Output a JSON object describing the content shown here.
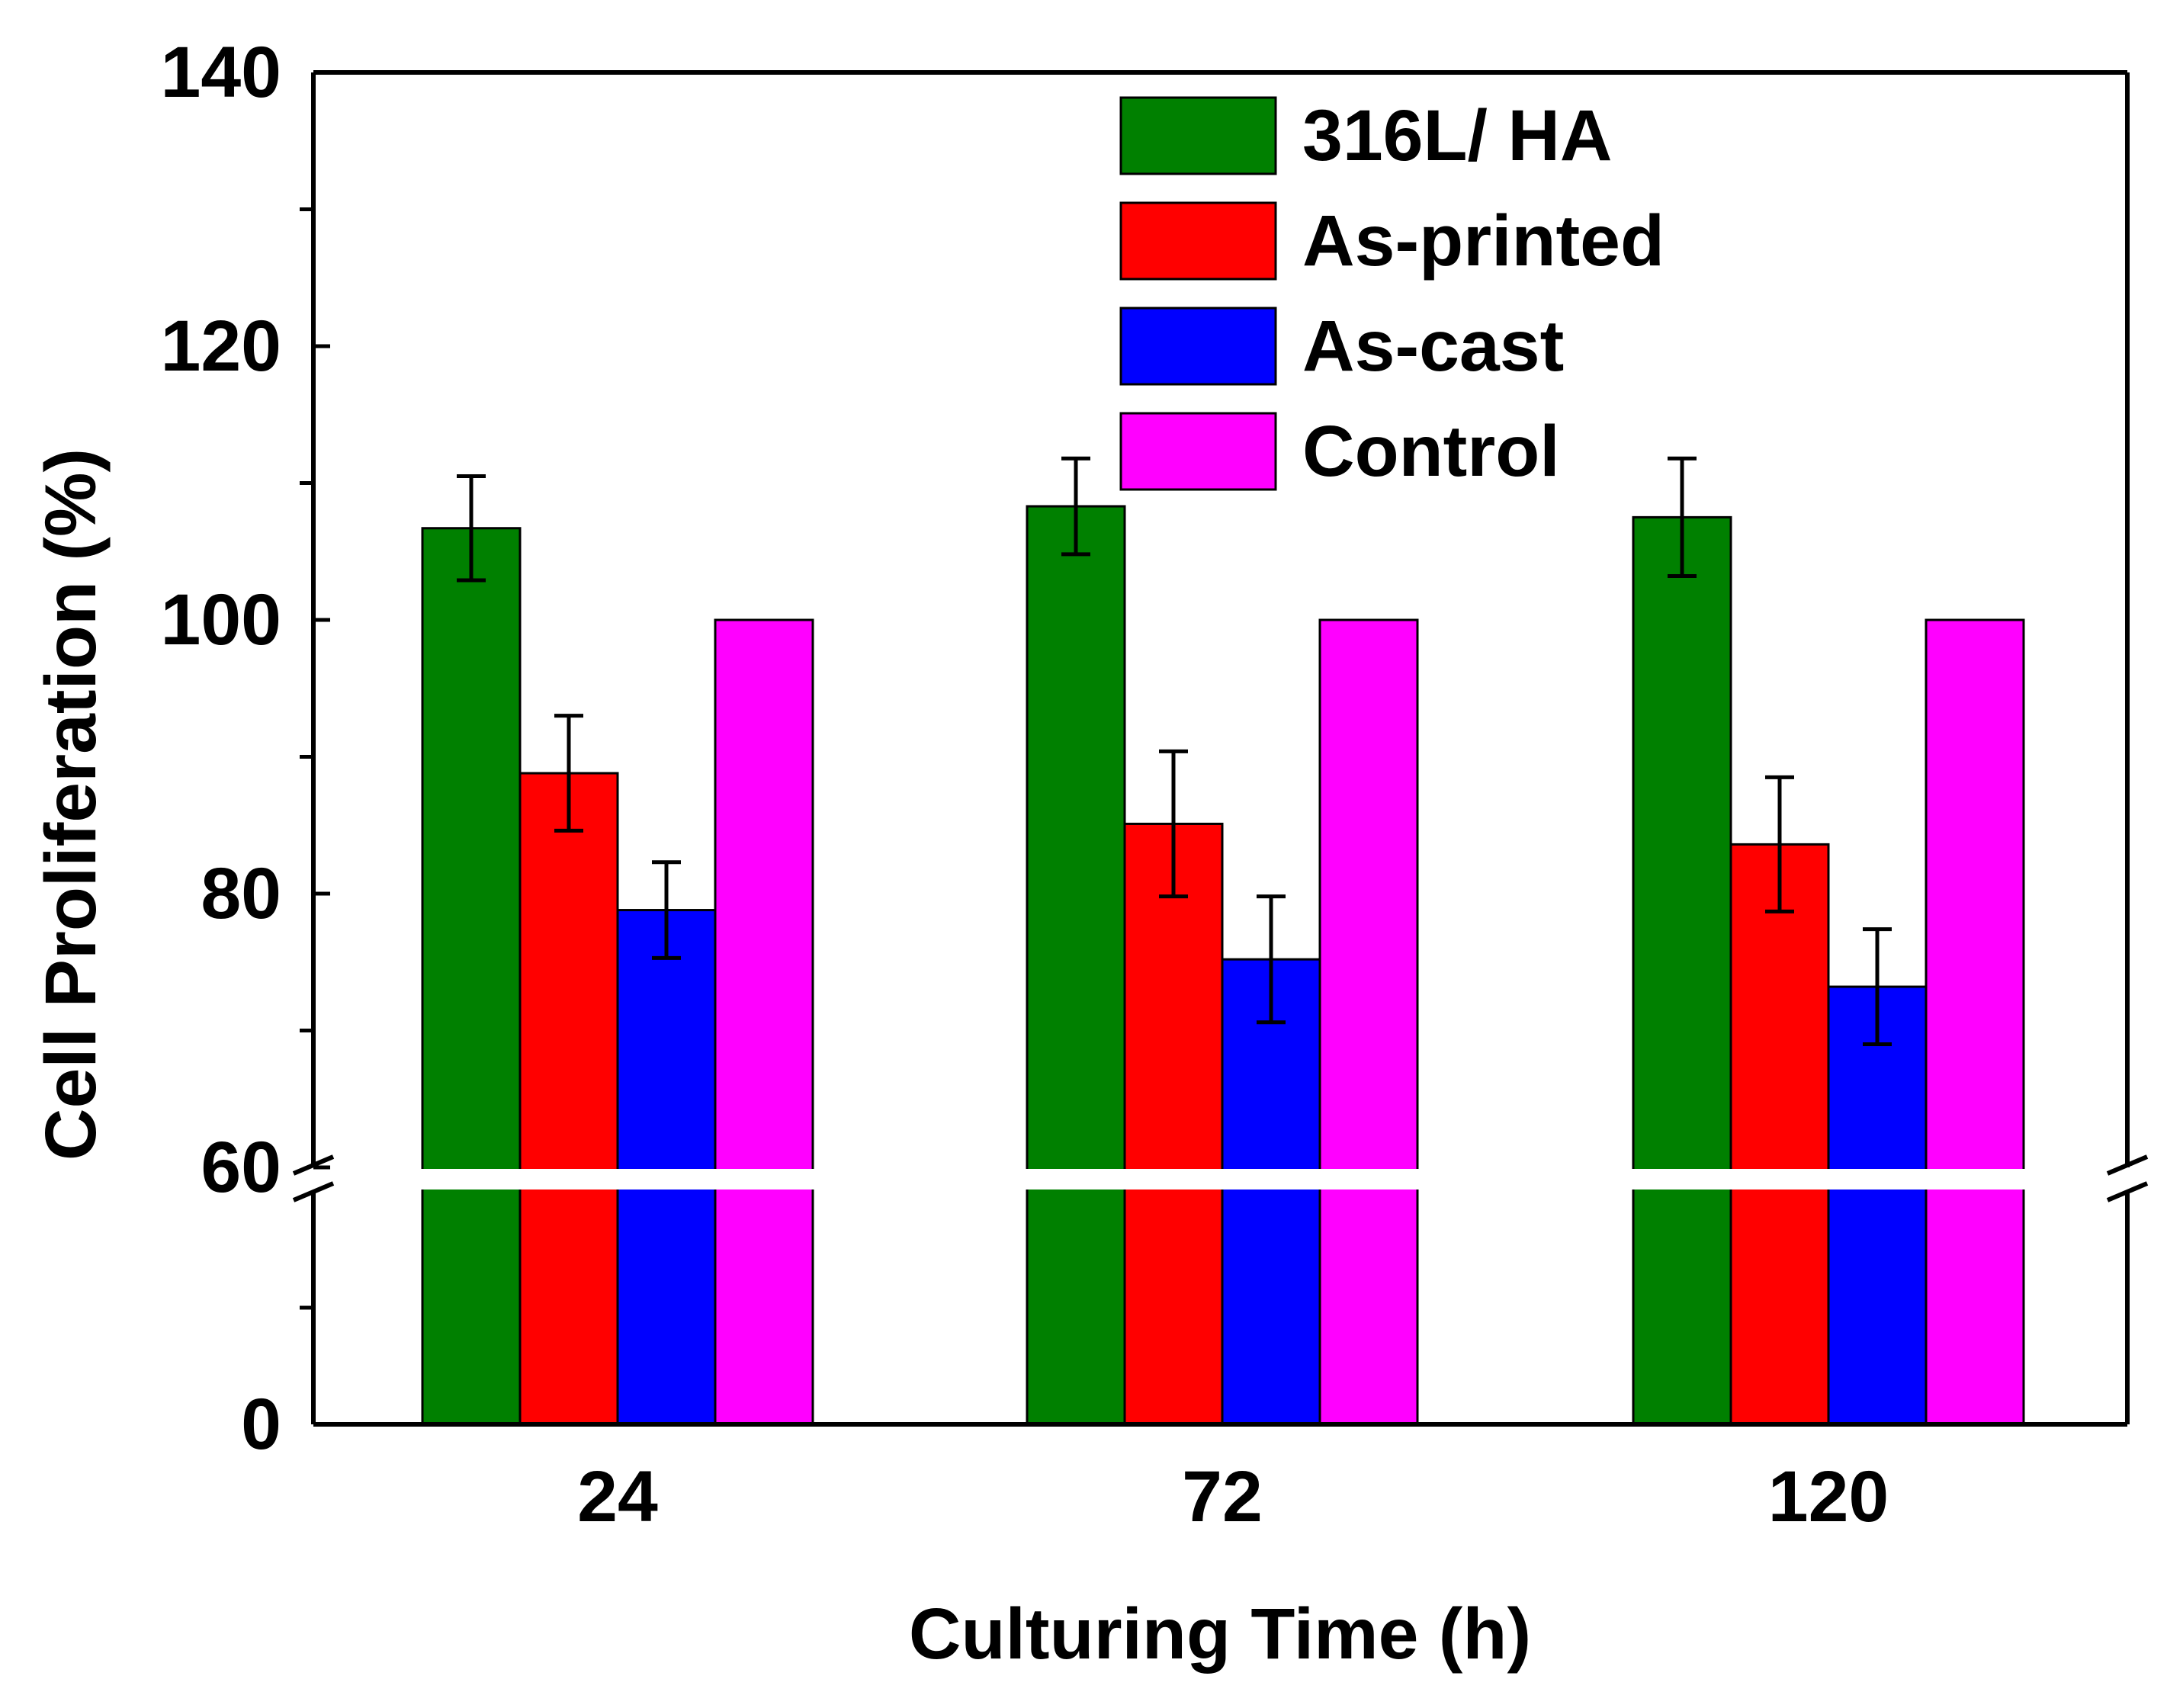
{
  "chart_data": {
    "type": "bar",
    "title": "",
    "xlabel": "Culturing Time (h)",
    "ylabel": "Cell Proliferation (%)",
    "categories": [
      "24",
      "72",
      "120"
    ],
    "ylim": [
      0,
      140
    ],
    "axis_break": [
      30,
      60
    ],
    "yticks": [
      "0",
      "60",
      "80",
      "100",
      "120",
      "140"
    ],
    "grid": false,
    "legend_position": "top-right",
    "series": [
      {
        "name": "316L/ HA",
        "color": "#008000",
        "values": [
          106.7,
          108.3,
          107.5
        ],
        "errors": [
          3.8,
          3.5,
          4.3
        ]
      },
      {
        "name": "As-printed",
        "color": "#ff0000",
        "values": [
          88.8,
          85.1,
          83.6
        ],
        "errors": [
          4.2,
          5.3,
          4.9
        ]
      },
      {
        "name": "As-cast",
        "color": "#0000ff",
        "values": [
          78.8,
          75.2,
          73.2
        ],
        "errors": [
          3.5,
          4.6,
          4.2
        ]
      },
      {
        "name": "Control",
        "color": "#ff00ff",
        "values": [
          100,
          100,
          100
        ],
        "errors": [
          0,
          0,
          0
        ]
      }
    ]
  }
}
